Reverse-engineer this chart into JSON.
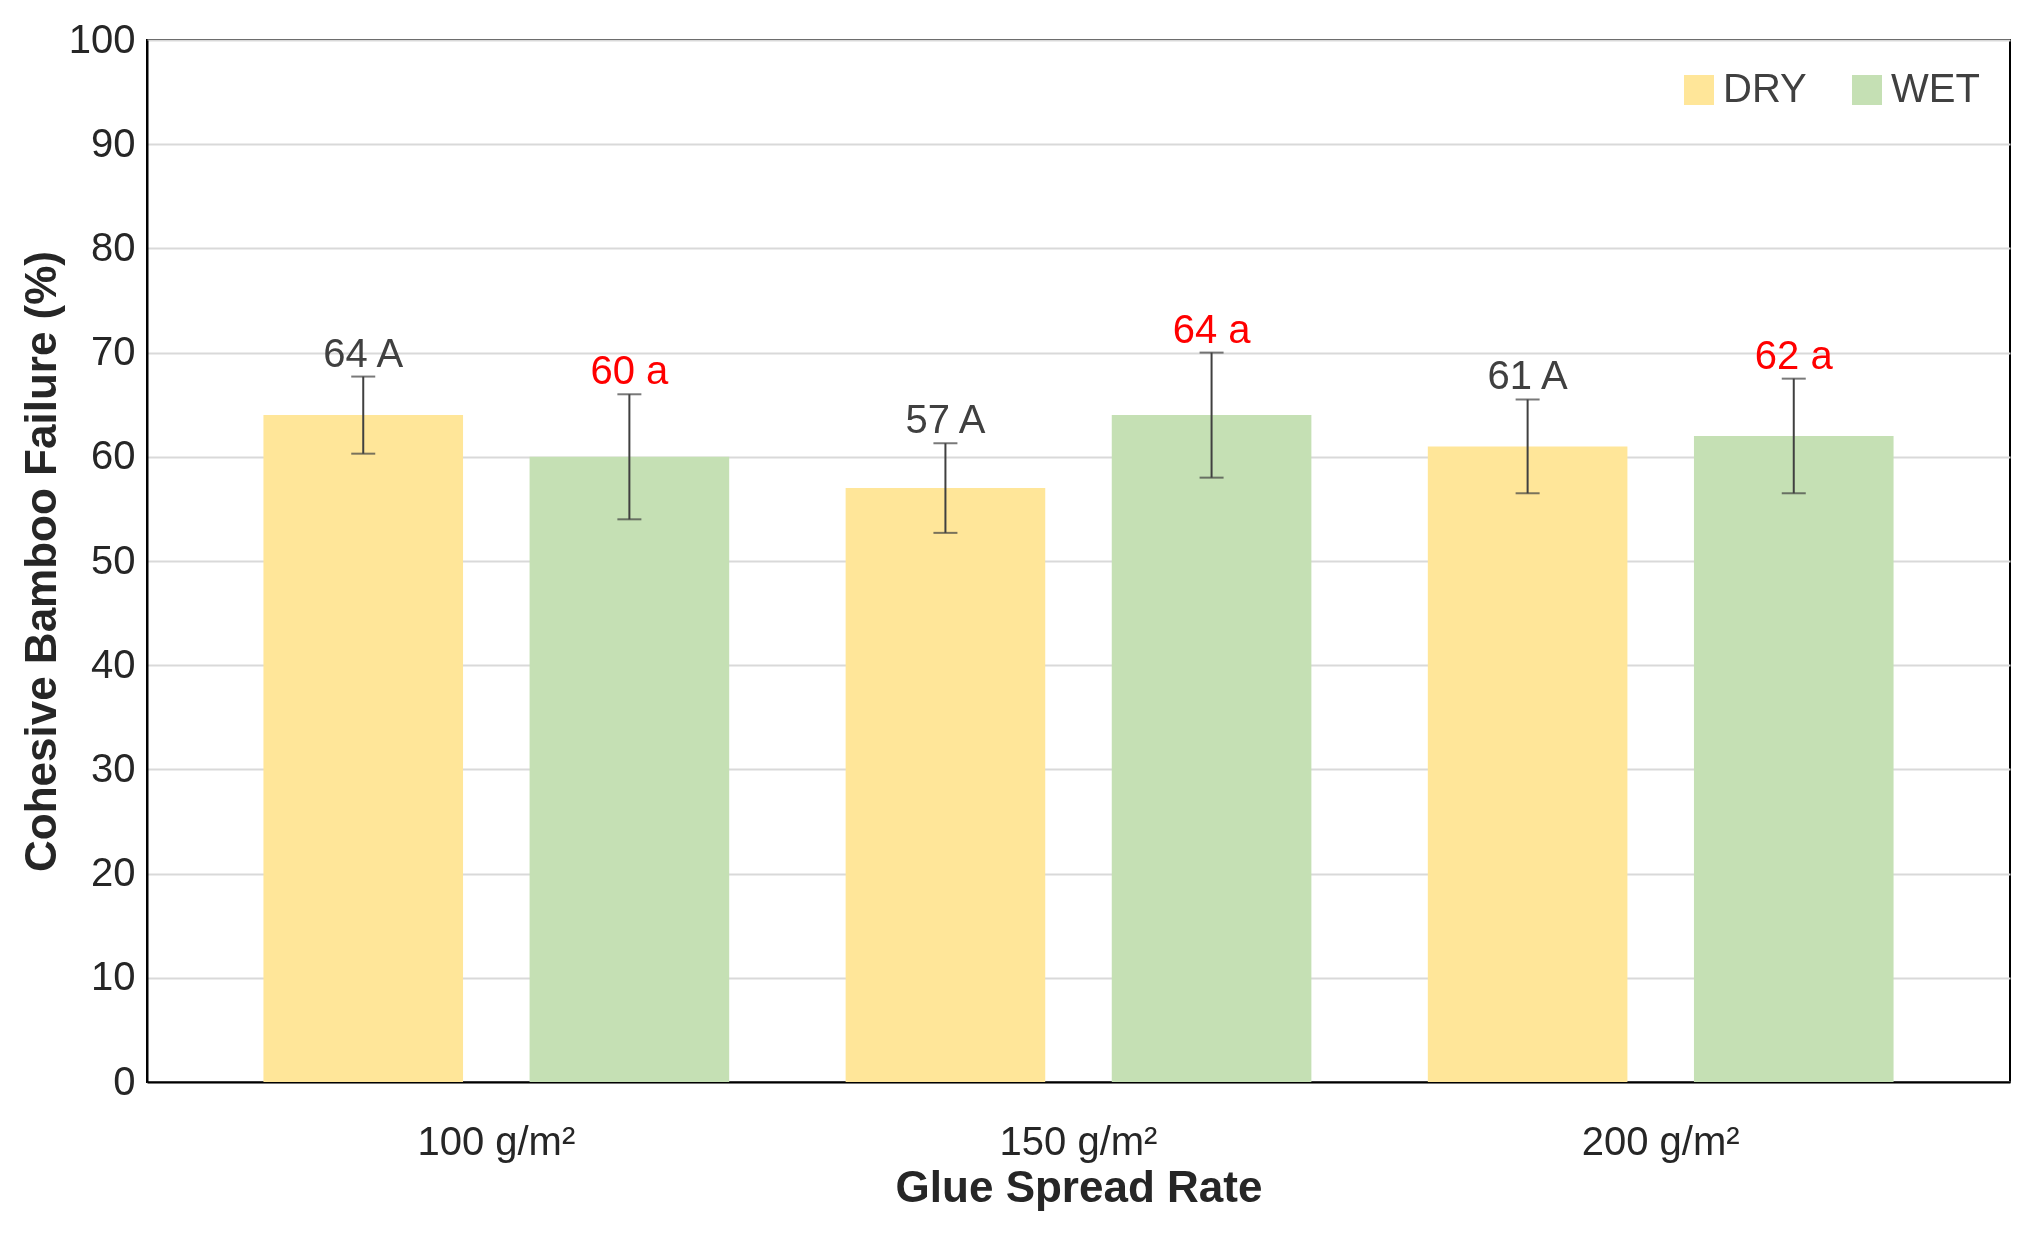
{
  "chart_data": {
    "type": "bar",
    "xlabel": "Glue Spread Rate",
    "ylabel": "Cohesive Bamboo Failure (%)",
    "categories": [
      "100 g/m²",
      "150 g/m²",
      "200 g/m²"
    ],
    "series": [
      {
        "name": "DRY",
        "color": "#ffe699",
        "values": [
          64,
          57,
          61
        ],
        "errors": [
          3.7,
          4.3,
          4.5
        ],
        "value_labels": [
          "64 A",
          "57 A",
          "61 A"
        ]
      },
      {
        "name": "WET",
        "color": "#c5e0b4",
        "values": [
          60,
          64,
          62
        ],
        "errors": [
          6,
          6,
          5.5
        ],
        "value_labels": [
          "60 a",
          "64 a",
          "62 a"
        ]
      }
    ],
    "ylim": [
      0,
      100
    ],
    "yticks": [
      0,
      10,
      20,
      30,
      40,
      50,
      60,
      70,
      80,
      90,
      100
    ],
    "grid": "y",
    "legend": "top right"
  }
}
